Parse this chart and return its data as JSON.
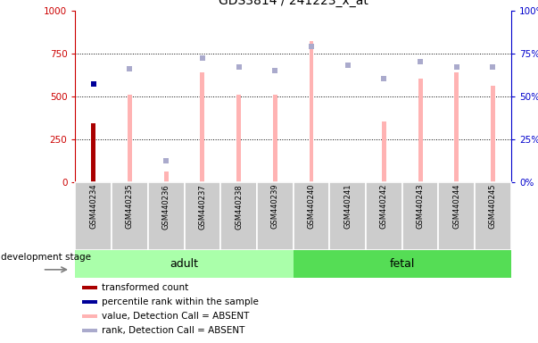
{
  "title": "GDS3814 / 241223_x_at",
  "samples": [
    "GSM440234",
    "GSM440235",
    "GSM440236",
    "GSM440237",
    "GSM440238",
    "GSM440239",
    "GSM440240",
    "GSM440241",
    "GSM440242",
    "GSM440243",
    "GSM440244",
    "GSM440245"
  ],
  "transformed_count": [
    340,
    null,
    null,
    null,
    null,
    null,
    null,
    null,
    null,
    null,
    null,
    null
  ],
  "percentile_rank": [
    57,
    null,
    null,
    null,
    null,
    null,
    null,
    null,
    null,
    null,
    null,
    null
  ],
  "value_absent": [
    null,
    510,
    60,
    640,
    510,
    510,
    820,
    null,
    350,
    600,
    640,
    560
  ],
  "rank_absent_pct": [
    null,
    66,
    12,
    72,
    67,
    65,
    79,
    68,
    60,
    70,
    67,
    67
  ],
  "percentile_rank_pct": 57,
  "ylim_left": [
    0,
    1000
  ],
  "ylim_right": [
    0,
    100
  ],
  "yticks_left": [
    0,
    250,
    500,
    750,
    1000
  ],
  "yticks_right": [
    0,
    25,
    50,
    75,
    100
  ],
  "bar_color_pink": "#ffb3b3",
  "bar_color_red": "#aa0000",
  "dot_color_blue": "#000099",
  "dot_color_lavender": "#aaaacc",
  "bg_color_adult": "#aaffaa",
  "bg_color_fetal": "#55dd55",
  "axis_left_color": "#cc0000",
  "axis_right_color": "#0000cc",
  "grid_color": "black",
  "tick_bg": "#cccccc",
  "n_adult": 6,
  "n_fetal": 6,
  "bar_width": 0.12
}
